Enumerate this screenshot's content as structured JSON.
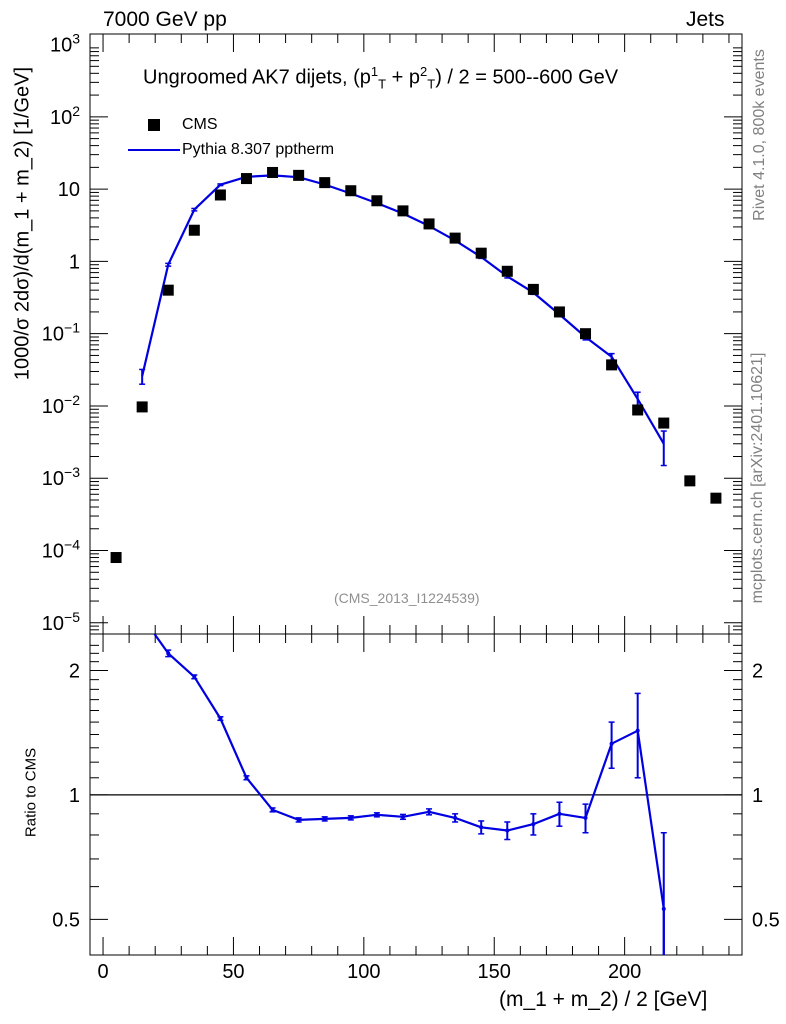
{
  "header": {
    "energy_label": "7000 GeV pp",
    "category_label": "Jets",
    "rivet_label": "Rivet 4.1.0,  800k events",
    "source_label": "mcplots.cern.ch [arXiv:2401.10621]"
  },
  "plot": {
    "title_main": "Ungroomed AK7 dijets, (p",
    "title_sup1": "1",
    "title_sub1": "T",
    "title_plus": " + p",
    "title_sup2": "2",
    "title_sub2": "T",
    "title_tail": ") / 2 = 500--600 GeV",
    "analysis_id": "(CMS_2013_I1224539)",
    "ylabel_main": "1000/σ   2dσ)/d(m_1 + m_2) [1/GeV]",
    "ylabel_ratio": "Ratio to CMS",
    "xlabel": "(m_1 + m_2) / 2 [GeV]"
  },
  "legend": {
    "data_label": "CMS",
    "mc_label": "Pythia 8.307 pptherm"
  },
  "colors": {
    "data": "#000000",
    "mc": "#0000e0",
    "reference_line": "#000000"
  },
  "chart_data": [
    {
      "type": "scatter",
      "panel": "main",
      "yscale": "log",
      "xlim": [
        -5,
        245
      ],
      "ylim": [
        7e-06,
        1400
      ],
      "y_ticks": [
        {
          "value": 1e-05,
          "base": "10",
          "exp": "−5"
        },
        {
          "value": 0.0001,
          "base": "10",
          "exp": "−4"
        },
        {
          "value": 0.001,
          "base": "10",
          "exp": "−3"
        },
        {
          "value": 0.01,
          "base": "10",
          "exp": "−2"
        },
        {
          "value": 0.1,
          "base": "10",
          "exp": "−1"
        },
        {
          "value": 1,
          "base": "1",
          "exp": ""
        },
        {
          "value": 10,
          "base": "10",
          "exp": ""
        },
        {
          "value": 100,
          "base": "10",
          "exp": "2"
        },
        {
          "value": 1000,
          "base": "10",
          "exp": "3"
        }
      ],
      "series": [
        {
          "name": "CMS",
          "x": [
            5,
            15,
            25,
            35,
            45,
            55,
            65,
            75,
            85,
            95,
            105,
            115,
            125,
            135,
            145,
            155,
            165,
            175,
            185,
            195,
            205,
            215,
            225,
            235
          ],
          "values": [
            8e-05,
            0.0097,
            0.4,
            2.7,
            8.3,
            14,
            17,
            15.5,
            12.3,
            9.5,
            6.9,
            5.0,
            3.3,
            2.1,
            1.3,
            0.73,
            0.41,
            0.2,
            0.1,
            0.037,
            0.0088,
            0.0058,
            0.00092,
            0.00053
          ]
        },
        {
          "name": "Pythia 8.307 pptherm",
          "x": [
            15,
            25,
            35,
            45,
            55,
            65,
            75,
            85,
            95,
            105,
            115,
            125,
            135,
            145,
            155,
            165,
            175,
            185,
            195,
            205,
            215
          ],
          "values": [
            0.026,
            0.9,
            5.2,
            11.5,
            14.8,
            15.5,
            14.6,
            11.6,
            8.7,
            6.4,
            4.6,
            3.1,
            1.95,
            1.15,
            0.62,
            0.37,
            0.185,
            0.09,
            0.048,
            0.0125,
            0.003
          ],
          "err": [
            0.006,
            0.04,
            0.2,
            0.3,
            0.3,
            0.3,
            0.3,
            0.25,
            0.2,
            0.15,
            0.12,
            0.08,
            0.06,
            0.05,
            0.03,
            0.02,
            0.012,
            0.008,
            0.005,
            0.003,
            0.0015
          ]
        }
      ]
    },
    {
      "type": "line",
      "panel": "ratio",
      "yscale": "log",
      "xlim": [
        -5,
        245
      ],
      "ylim": [
        0.41,
        2.45
      ],
      "reference": 1,
      "x_ticks": [
        0,
        50,
        100,
        150,
        200
      ],
      "y_ticks": [
        0.5,
        1,
        2
      ],
      "y_tick_labels": [
        "0.5",
        "1",
        "2"
      ],
      "series": [
        {
          "name": "Pythia 8.307 pptherm / CMS",
          "x": [
            15,
            25,
            35,
            45,
            55,
            65,
            75,
            85,
            95,
            105,
            115,
            125,
            135,
            145,
            155,
            165,
            175,
            185,
            195,
            205,
            215
          ],
          "values": [
            2.7,
            2.2,
            1.93,
            1.53,
            1.1,
            0.92,
            0.87,
            0.875,
            0.88,
            0.895,
            0.885,
            0.91,
            0.88,
            0.835,
            0.82,
            0.85,
            0.9,
            0.88,
            1.33,
            1.43,
            0.53
          ],
          "err": [
            0.05,
            0.04,
            0.02,
            0.015,
            0.012,
            0.01,
            0.01,
            0.01,
            0.01,
            0.01,
            0.012,
            0.015,
            0.02,
            0.03,
            0.04,
            0.05,
            0.06,
            0.07,
            0.17,
            0.33,
            0.28
          ]
        }
      ]
    }
  ]
}
